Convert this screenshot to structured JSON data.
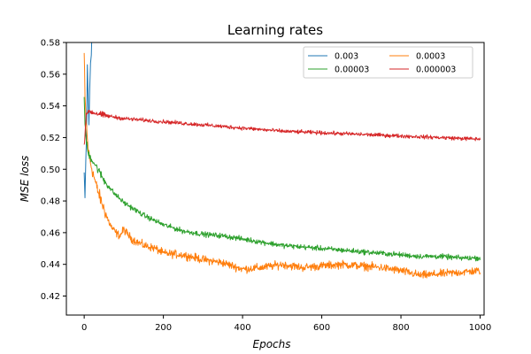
{
  "chart_data": {
    "type": "line",
    "title": "Learning rates",
    "xlabel": "Epochs",
    "ylabel": "MSE loss",
    "xlim": [
      -45,
      1010
    ],
    "ylim": [
      0.408,
      0.58
    ],
    "xticks": [
      "0",
      "200",
      "400",
      "600",
      "800",
      "1000"
    ],
    "yticks": [
      "0.42",
      "0.44",
      "0.46",
      "0.48",
      "0.50",
      "0.52",
      "0.54",
      "0.56",
      "0.58"
    ],
    "grid": false,
    "legend": {
      "position": "top-right",
      "columns": 2
    },
    "series": [
      {
        "name": "0.003",
        "color": "#1f77b4",
        "x": [
          0,
          2,
          4,
          6,
          8,
          10,
          12,
          14,
          16,
          18,
          20
        ],
        "y": [
          0.498,
          0.482,
          0.505,
          0.522,
          0.566,
          0.545,
          0.528,
          0.551,
          0.567,
          0.572,
          0.59
        ]
      },
      {
        "name": "0.0003",
        "color": "#ff7f0e",
        "x": [
          0,
          2,
          5,
          10,
          15,
          20,
          25,
          30,
          40,
          50,
          60,
          70,
          80,
          90,
          100,
          120,
          150,
          180,
          200,
          250,
          300,
          350,
          400,
          450,
          500,
          550,
          600,
          650,
          700,
          750,
          800,
          850,
          900,
          950,
          1000
        ],
        "y": [
          0.573,
          0.545,
          0.53,
          0.512,
          0.505,
          0.5,
          0.495,
          0.49,
          0.482,
          0.475,
          0.468,
          0.463,
          0.46,
          0.458,
          0.462,
          0.456,
          0.452,
          0.45,
          0.447,
          0.446,
          0.443,
          0.441,
          0.437,
          0.438,
          0.44,
          0.438,
          0.439,
          0.44,
          0.439,
          0.438,
          0.436,
          0.433,
          0.434,
          0.435,
          0.436
        ]
      },
      {
        "name": "0.00003",
        "color": "#2ca02c",
        "x": [
          0,
          2,
          5,
          10,
          20,
          30,
          50,
          75,
          100,
          150,
          200,
          250,
          300,
          350,
          400,
          450,
          500,
          550,
          600,
          650,
          700,
          750,
          800,
          850,
          900,
          950,
          1000
        ],
        "y": [
          0.543,
          0.53,
          0.518,
          0.51,
          0.506,
          0.502,
          0.493,
          0.485,
          0.479,
          0.471,
          0.465,
          0.461,
          0.459,
          0.458,
          0.456,
          0.454,
          0.452,
          0.451,
          0.45,
          0.449,
          0.448,
          0.447,
          0.446,
          0.445,
          0.445,
          0.444,
          0.444
        ]
      },
      {
        "name": "0.000003",
        "color": "#d62728",
        "x": [
          0,
          5,
          10,
          20,
          50,
          100,
          150,
          200,
          300,
          400,
          500,
          600,
          700,
          800,
          900,
          1000
        ],
        "y": [
          0.515,
          0.533,
          0.537,
          0.536,
          0.534,
          0.532,
          0.531,
          0.53,
          0.528,
          0.526,
          0.524,
          0.523,
          0.522,
          0.521,
          0.52,
          0.519
        ]
      }
    ]
  }
}
